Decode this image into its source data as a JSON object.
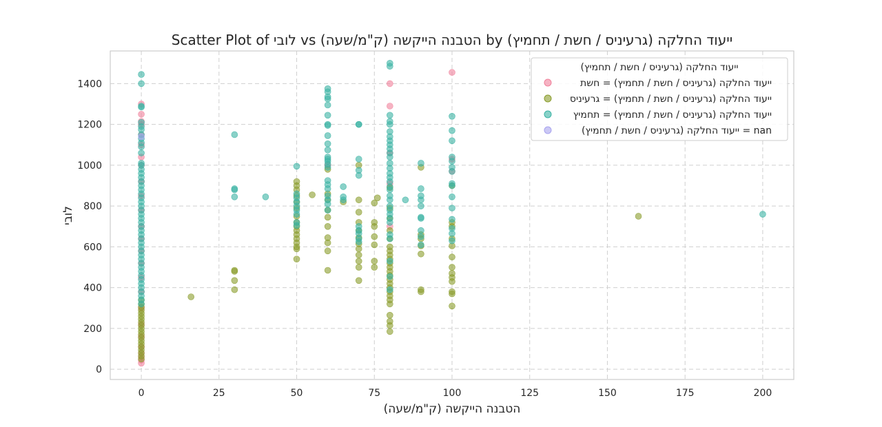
{
  "chart_data": {
    "type": "scatter",
    "title": "Scatter Plot of לובי vs הטבנה הייקשה (ק\"מ/שעה) by ייעוד החלקה (גרעיניס / חשת / תחמיץ)",
    "xlabel": "הטבנה הייקשה (ק\"מ/שעה)",
    "ylabel": "לובי",
    "xlim": [
      -10,
      210
    ],
    "ylim": [
      -50,
      1560
    ],
    "xticks": [
      0,
      25,
      50,
      75,
      100,
      125,
      150,
      175,
      200
    ],
    "yticks": [
      0,
      200,
      400,
      600,
      800,
      1000,
      1200,
      1400
    ],
    "grid": true,
    "legend_position": "top-right",
    "legend_title": "ייעוד החלקה (גרעיניס / חשת / תחמיץ)",
    "series": [
      {
        "name": "ייעוד החלקה (גרעיניס / חשת / תחמיץ) = חשת",
        "color": "#f0819b",
        "points": [
          [
            0,
            30
          ],
          [
            0,
            45
          ],
          [
            0,
            60
          ],
          [
            0,
            80
          ],
          [
            0,
            110
          ],
          [
            0,
            160
          ],
          [
            0,
            220
          ],
          [
            0,
            300
          ],
          [
            0,
            380
          ],
          [
            0,
            450
          ],
          [
            0,
            520
          ],
          [
            0,
            580
          ],
          [
            0,
            640
          ],
          [
            0,
            700
          ],
          [
            0,
            780
          ],
          [
            0,
            850
          ],
          [
            0,
            920
          ],
          [
            0,
            1000
          ],
          [
            0,
            1040
          ],
          [
            0,
            1100
          ],
          [
            0,
            1150
          ],
          [
            0,
            1200
          ],
          [
            0,
            1215
          ],
          [
            0,
            1250
          ],
          [
            0,
            1300
          ],
          [
            80,
            1400
          ],
          [
            80,
            1290
          ],
          [
            100,
            1455
          ],
          [
            100,
            1030
          ],
          [
            100,
            970
          ],
          [
            80,
            1060
          ],
          [
            80,
            910
          ],
          [
            60,
            1000
          ],
          [
            80,
            700
          ]
        ]
      },
      {
        "name": "ייעוד החלקה (גרעיניס / חשת / תחמיץ) = גרעיניס",
        "color": "#8a9c2c",
        "points": [
          [
            0,
            50
          ],
          [
            0,
            65
          ],
          [
            0,
            80
          ],
          [
            0,
            95
          ],
          [
            0,
            110
          ],
          [
            0,
            125
          ],
          [
            0,
            140
          ],
          [
            0,
            155
          ],
          [
            0,
            170
          ],
          [
            0,
            185
          ],
          [
            0,
            200
          ],
          [
            0,
            215
          ],
          [
            0,
            230
          ],
          [
            0,
            245
          ],
          [
            0,
            260
          ],
          [
            0,
            275
          ],
          [
            0,
            290
          ],
          [
            0,
            305
          ],
          [
            0,
            320
          ],
          [
            0,
            340
          ],
          [
            16,
            355
          ],
          [
            30,
            390
          ],
          [
            30,
            435
          ],
          [
            30,
            480
          ],
          [
            30,
            485
          ],
          [
            50,
            540
          ],
          [
            50,
            590
          ],
          [
            50,
            600
          ],
          [
            50,
            620
          ],
          [
            50,
            640
          ],
          [
            50,
            660
          ],
          [
            50,
            680
          ],
          [
            50,
            700
          ],
          [
            50,
            720
          ],
          [
            50,
            750
          ],
          [
            50,
            790
          ],
          [
            50,
            820
          ],
          [
            50,
            850
          ],
          [
            50,
            880
          ],
          [
            50,
            900
          ],
          [
            50,
            920
          ],
          [
            55,
            855
          ],
          [
            60,
            485
          ],
          [
            60,
            580
          ],
          [
            60,
            620
          ],
          [
            60,
            645
          ],
          [
            60,
            700
          ],
          [
            60,
            745
          ],
          [
            60,
            780
          ],
          [
            60,
            830
          ],
          [
            60,
            860
          ],
          [
            60,
            980
          ],
          [
            65,
            820
          ],
          [
            70,
            435
          ],
          [
            70,
            500
          ],
          [
            70,
            530
          ],
          [
            70,
            560
          ],
          [
            70,
            590
          ],
          [
            70,
            615
          ],
          [
            70,
            645
          ],
          [
            70,
            680
          ],
          [
            70,
            720
          ],
          [
            70,
            770
          ],
          [
            70,
            830
          ],
          [
            70,
            1000
          ],
          [
            75,
            500
          ],
          [
            75,
            530
          ],
          [
            75,
            610
          ],
          [
            75,
            650
          ],
          [
            75,
            700
          ],
          [
            75,
            720
          ],
          [
            75,
            815
          ],
          [
            76,
            840
          ],
          [
            80,
            185
          ],
          [
            80,
            215
          ],
          [
            80,
            235
          ],
          [
            80,
            265
          ],
          [
            80,
            320
          ],
          [
            80,
            340
          ],
          [
            80,
            360
          ],
          [
            80,
            380
          ],
          [
            80,
            400
          ],
          [
            80,
            420
          ],
          [
            80,
            440
          ],
          [
            80,
            460
          ],
          [
            80,
            480
          ],
          [
            80,
            500
          ],
          [
            80,
            520
          ],
          [
            80,
            540
          ],
          [
            80,
            560
          ],
          [
            80,
            580
          ],
          [
            80,
            600
          ],
          [
            80,
            640
          ],
          [
            80,
            680
          ],
          [
            80,
            740
          ],
          [
            80,
            790
          ],
          [
            80,
            890
          ],
          [
            90,
            380
          ],
          [
            90,
            390
          ],
          [
            90,
            565
          ],
          [
            90,
            605
          ],
          [
            90,
            640
          ],
          [
            90,
            660
          ],
          [
            90,
            990
          ],
          [
            100,
            310
          ],
          [
            100,
            370
          ],
          [
            100,
            380
          ],
          [
            100,
            430
          ],
          [
            100,
            450
          ],
          [
            100,
            470
          ],
          [
            100,
            500
          ],
          [
            100,
            550
          ],
          [
            100,
            605
          ],
          [
            100,
            640
          ],
          [
            100,
            700
          ],
          [
            100,
            720
          ],
          [
            100,
            900
          ],
          [
            160,
            750
          ]
        ]
      },
      {
        "name": "ייעוד החלקה (גרעיניס / חשת / תחמיץ) = תחמיץ",
        "color": "#3ab3a4",
        "points": [
          [
            0,
            320
          ],
          [
            0,
            340
          ],
          [
            0,
            360
          ],
          [
            0,
            380
          ],
          [
            0,
            400
          ],
          [
            0,
            420
          ],
          [
            0,
            440
          ],
          [
            0,
            460
          ],
          [
            0,
            480
          ],
          [
            0,
            500
          ],
          [
            0,
            520
          ],
          [
            0,
            540
          ],
          [
            0,
            560
          ],
          [
            0,
            580
          ],
          [
            0,
            600
          ],
          [
            0,
            620
          ],
          [
            0,
            640
          ],
          [
            0,
            660
          ],
          [
            0,
            680
          ],
          [
            0,
            700
          ],
          [
            0,
            720
          ],
          [
            0,
            740
          ],
          [
            0,
            760
          ],
          [
            0,
            780
          ],
          [
            0,
            800
          ],
          [
            0,
            820
          ],
          [
            0,
            840
          ],
          [
            0,
            860
          ],
          [
            0,
            880
          ],
          [
            0,
            900
          ],
          [
            0,
            920
          ],
          [
            0,
            940
          ],
          [
            0,
            960
          ],
          [
            0,
            980
          ],
          [
            0,
            1000
          ],
          [
            0,
            1010
          ],
          [
            0,
            1060
          ],
          [
            0,
            1090
          ],
          [
            0,
            1110
          ],
          [
            0,
            1130
          ],
          [
            0,
            1150
          ],
          [
            0,
            1175
          ],
          [
            0,
            1190
          ],
          [
            0,
            1210
          ],
          [
            0,
            1285
          ],
          [
            0,
            1290
          ],
          [
            0,
            1400
          ],
          [
            0,
            1445
          ],
          [
            30,
            1150
          ],
          [
            30,
            885
          ],
          [
            30,
            880
          ],
          [
            30,
            845
          ],
          [
            40,
            845
          ],
          [
            50,
            995
          ],
          [
            50,
            860
          ],
          [
            50,
            840
          ],
          [
            50,
            820
          ],
          [
            50,
            800
          ],
          [
            50,
            780
          ],
          [
            50,
            760
          ],
          [
            50,
            720
          ],
          [
            50,
            705
          ],
          [
            60,
            1375
          ],
          [
            60,
            1360
          ],
          [
            60,
            1335
          ],
          [
            60,
            1325
          ],
          [
            60,
            1295
          ],
          [
            60,
            1245
          ],
          [
            60,
            1200
          ],
          [
            60,
            1195
          ],
          [
            60,
            1145
          ],
          [
            60,
            1105
          ],
          [
            60,
            1075
          ],
          [
            60,
            1040
          ],
          [
            60,
            1030
          ],
          [
            60,
            1020
          ],
          [
            60,
            1005
          ],
          [
            60,
            990
          ],
          [
            60,
            925
          ],
          [
            60,
            905
          ],
          [
            60,
            885
          ],
          [
            60,
            850
          ],
          [
            60,
            830
          ],
          [
            60,
            810
          ],
          [
            60,
            780
          ],
          [
            65,
            895
          ],
          [
            65,
            845
          ],
          [
            65,
            830
          ],
          [
            70,
            1200
          ],
          [
            70,
            1200
          ],
          [
            70,
            1030
          ],
          [
            70,
            975
          ],
          [
            70,
            950
          ],
          [
            70,
            700
          ],
          [
            70,
            680
          ],
          [
            70,
            665
          ],
          [
            70,
            640
          ],
          [
            70,
            625
          ],
          [
            80,
            1500
          ],
          [
            80,
            1485
          ],
          [
            80,
            1245
          ],
          [
            80,
            1215
          ],
          [
            80,
            1200
          ],
          [
            80,
            1165
          ],
          [
            80,
            1140
          ],
          [
            80,
            1120
          ],
          [
            80,
            1100
          ],
          [
            80,
            1080
          ],
          [
            80,
            1060
          ],
          [
            80,
            1040
          ],
          [
            80,
            1010
          ],
          [
            80,
            985
          ],
          [
            80,
            960
          ],
          [
            80,
            940
          ],
          [
            80,
            920
          ],
          [
            80,
            895
          ],
          [
            80,
            880
          ],
          [
            80,
            850
          ],
          [
            80,
            830
          ],
          [
            80,
            800
          ],
          [
            80,
            780
          ],
          [
            80,
            760
          ],
          [
            80,
            740
          ],
          [
            80,
            720
          ],
          [
            80,
            660
          ],
          [
            80,
            640
          ],
          [
            80,
            530
          ],
          [
            80,
            455
          ],
          [
            80,
            390
          ],
          [
            85,
            830
          ],
          [
            90,
            1010
          ],
          [
            90,
            885
          ],
          [
            90,
            850
          ],
          [
            90,
            830
          ],
          [
            90,
            800
          ],
          [
            90,
            745
          ],
          [
            90,
            740
          ],
          [
            90,
            680
          ],
          [
            90,
            650
          ],
          [
            90,
            610
          ],
          [
            100,
            1240
          ],
          [
            100,
            1170
          ],
          [
            100,
            1120
          ],
          [
            100,
            1040
          ],
          [
            100,
            1020
          ],
          [
            100,
            990
          ],
          [
            100,
            970
          ],
          [
            100,
            910
          ],
          [
            100,
            900
          ],
          [
            100,
            845
          ],
          [
            100,
            790
          ],
          [
            100,
            735
          ],
          [
            100,
            690
          ],
          [
            100,
            665
          ],
          [
            100,
            630
          ],
          [
            200,
            760
          ]
        ]
      },
      {
        "name": "ייעוד החלקה (גרעיניס / חשת / תחמיץ) = nan",
        "color": "#a8a4ee",
        "points": [
          [
            0,
            1140
          ]
        ]
      }
    ]
  }
}
